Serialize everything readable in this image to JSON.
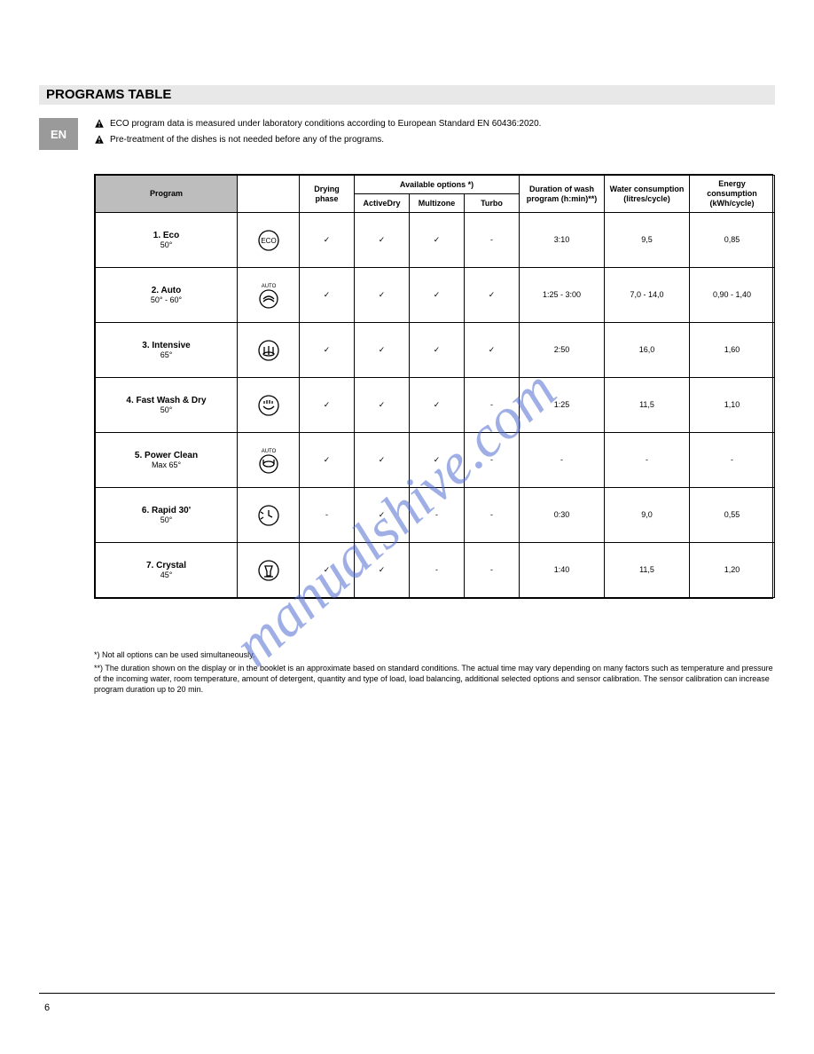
{
  "header": {
    "title": "PROGRAMS TABLE"
  },
  "lang_box": "EN",
  "warnings": [
    "ECO program data is measured under laboratory conditions according to European Standard EN 60436:2020.",
    "Pre-treatment of the dishes is not needed before any of the programs."
  ],
  "table": {
    "columns": {
      "program": "Program",
      "symbol": "",
      "drying_phase": "Drying phase",
      "available_options": "Available options *)",
      "options": {
        "active_dry": "ActiveDry",
        "multizone": "Multizone",
        "turbo": "Turbo"
      },
      "duration": "Duration of wash program (h:min)**)",
      "water": "Water consumption (litres/cycle)",
      "energy": "Energy consumption (kWh/cycle)"
    },
    "rows": [
      {
        "name_line1": "1. Eco",
        "name_line2": "50°",
        "icon": "eco",
        "drying": "✓",
        "opt1": "✓",
        "opt2": "✓",
        "opt3": "-",
        "duration": "3:10",
        "water": "9,5",
        "energy": "0,85"
      },
      {
        "name_line1": "2. Auto",
        "name_line2": "50° - 60°",
        "icon": "auto",
        "drying": "✓",
        "opt1": "✓",
        "opt2": "✓",
        "opt3": "✓",
        "duration": "1:25 - 3:00",
        "water": "7,0 - 14,0",
        "energy": "0,90 - 1,40"
      },
      {
        "name_line1": "3. Intensive",
        "name_line2": "65°",
        "icon": "intensive",
        "drying": "✓",
        "opt1": "✓",
        "opt2": "✓",
        "opt3": "✓",
        "duration": "2:50",
        "water": "16,0",
        "energy": "1,60"
      },
      {
        "name_line1": "4. Fast Wash & Dry",
        "name_line2": "50°",
        "icon": "fast",
        "drying": "✓",
        "opt1": "✓",
        "opt2": "✓",
        "opt3": "-",
        "duration": "1:25",
        "water": "11,5",
        "energy": "1,10"
      },
      {
        "name_line1": "5. Power Clean",
        "name_line2": "Max 65°",
        "icon": "power",
        "drying": "✓",
        "opt1": "✓",
        "opt2": "✓",
        "opt3": "-",
        "duration": "-",
        "water": "-",
        "energy": "-"
      },
      {
        "name_line1": "6. Rapid 30'",
        "name_line2": "50°",
        "icon": "rapid",
        "drying": "-",
        "opt1": "✓",
        "opt2": "-",
        "opt3": "-",
        "duration": "0:30",
        "water": "9,0",
        "energy": "0,55"
      },
      {
        "name_line1": "7. Crystal",
        "name_line2": "45°",
        "icon": "crystal",
        "drying": "✓",
        "opt1": "✓",
        "opt2": "-",
        "opt3": "-",
        "duration": "1:40",
        "water": "11,5",
        "energy": "1,20"
      }
    ]
  },
  "footnotes": [
    "*) Not all options can be used simultaneously.",
    "**) The duration shown on the display or in the booklet is an approximate based on standard conditions. The actual time may vary depending on many factors such as temperature and pressure of the incoming water, room temperature, amount of detergent, quantity and type of load, load balancing, additional selected options and sensor calibration. The sensor calibration can increase program duration up to 20 min."
  ],
  "page_number": "6",
  "watermark_text": "manualshive.com",
  "icons": {
    "eco_stroke": "#000",
    "eco_fill": "none",
    "colors": {
      "watermark": "rgba(80,110,210,0.55)"
    }
  }
}
